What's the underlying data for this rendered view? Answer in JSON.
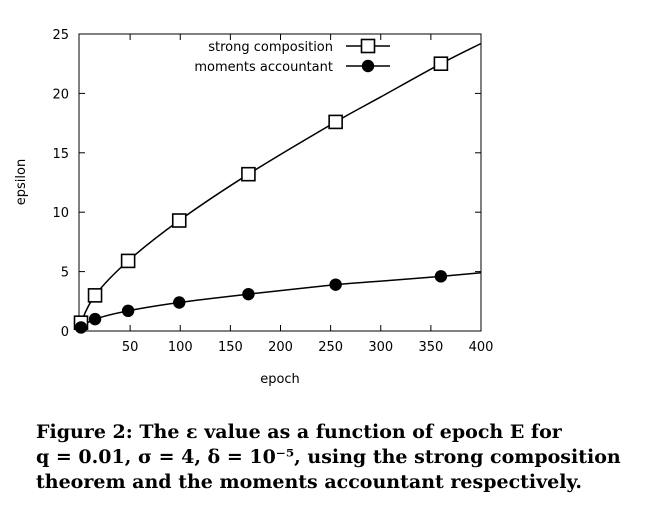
{
  "chart_data": {
    "type": "line",
    "xlabel": "epoch",
    "ylabel": "epsilon",
    "xlim": [
      0,
      400
    ],
    "ylim": [
      0,
      25
    ],
    "xticks": [
      50,
      100,
      150,
      200,
      250,
      300,
      350,
      400
    ],
    "yticks": [
      0,
      5,
      10,
      15,
      20,
      25
    ],
    "legend_position": "top-right",
    "series": [
      {
        "name": "strong composition",
        "marker": "open-square",
        "x": [
          1,
          15,
          48,
          99,
          168,
          255,
          360
        ],
        "y": [
          0.7,
          3.0,
          5.9,
          9.3,
          13.2,
          17.6,
          22.5
        ],
        "curve_x": [
          0,
          1,
          15,
          48,
          99,
          168,
          255,
          300,
          360,
          400
        ],
        "curve_y": [
          0,
          0.7,
          3.0,
          5.9,
          9.3,
          13.2,
          17.6,
          19.7,
          22.5,
          24.2
        ]
      },
      {
        "name": "moments accountant",
        "marker": "filled-circle",
        "x": [
          1,
          15,
          48,
          99,
          168,
          255,
          360
        ],
        "y": [
          0.3,
          1.0,
          1.7,
          2.4,
          3.1,
          3.9,
          4.6
        ],
        "curve_x": [
          0,
          1,
          15,
          48,
          99,
          168,
          255,
          300,
          360,
          400
        ],
        "curve_y": [
          0,
          0.3,
          1.0,
          1.7,
          2.4,
          3.1,
          3.9,
          4.2,
          4.6,
          4.9
        ]
      }
    ]
  },
  "caption": {
    "label": "Figure 2:",
    "line1": "The ε value as a function of epoch E for",
    "line2": "q = 0.01, σ = 4, δ = 10⁻⁵, using the strong composition",
    "line3": "theorem and the moments accountant respectively."
  }
}
